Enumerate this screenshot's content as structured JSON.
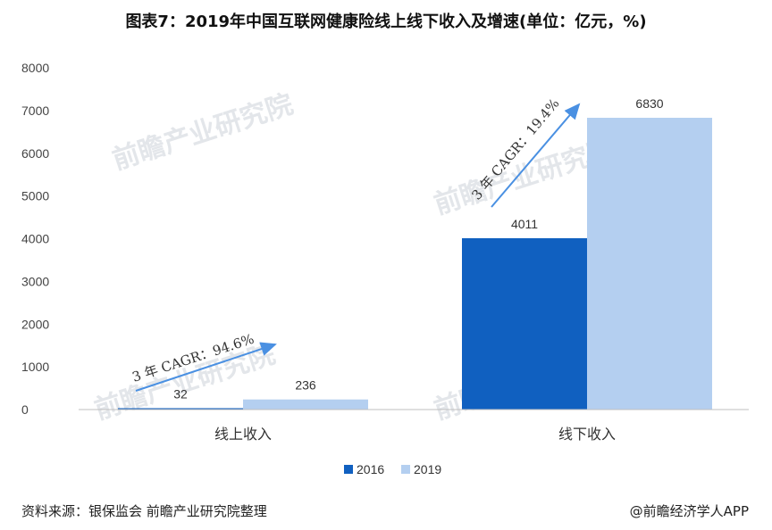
{
  "title": "图表7：2019年中国互联网健康险线上线下收入及增速(单位：亿元，%)",
  "footer": {
    "source": "资料来源：银保监会 前瞻产业研究院整理",
    "credit": "@前瞻经济学人APP"
  },
  "watermark": "前瞻产业研究院",
  "colors": {
    "s2016": "#1060c0",
    "s2019": "#b4cff0",
    "arrow": "#4a90e2",
    "axis": "#bfbfbf"
  },
  "chart_data": {
    "type": "bar",
    "categories": [
      "线上收入",
      "线下收入"
    ],
    "series": [
      {
        "name": "2016",
        "values": [
          32,
          4011
        ]
      },
      {
        "name": "2019",
        "values": [
          236,
          6830
        ]
      }
    ],
    "ylim": [
      0,
      8000
    ],
    "yticks": [
      0,
      1000,
      2000,
      3000,
      4000,
      5000,
      6000,
      7000,
      8000
    ],
    "grid": false,
    "legend": "bottom-center",
    "annotations": [
      "3 年 CAGR：94.6%",
      "3 年 CAGR：19.4%"
    ]
  }
}
